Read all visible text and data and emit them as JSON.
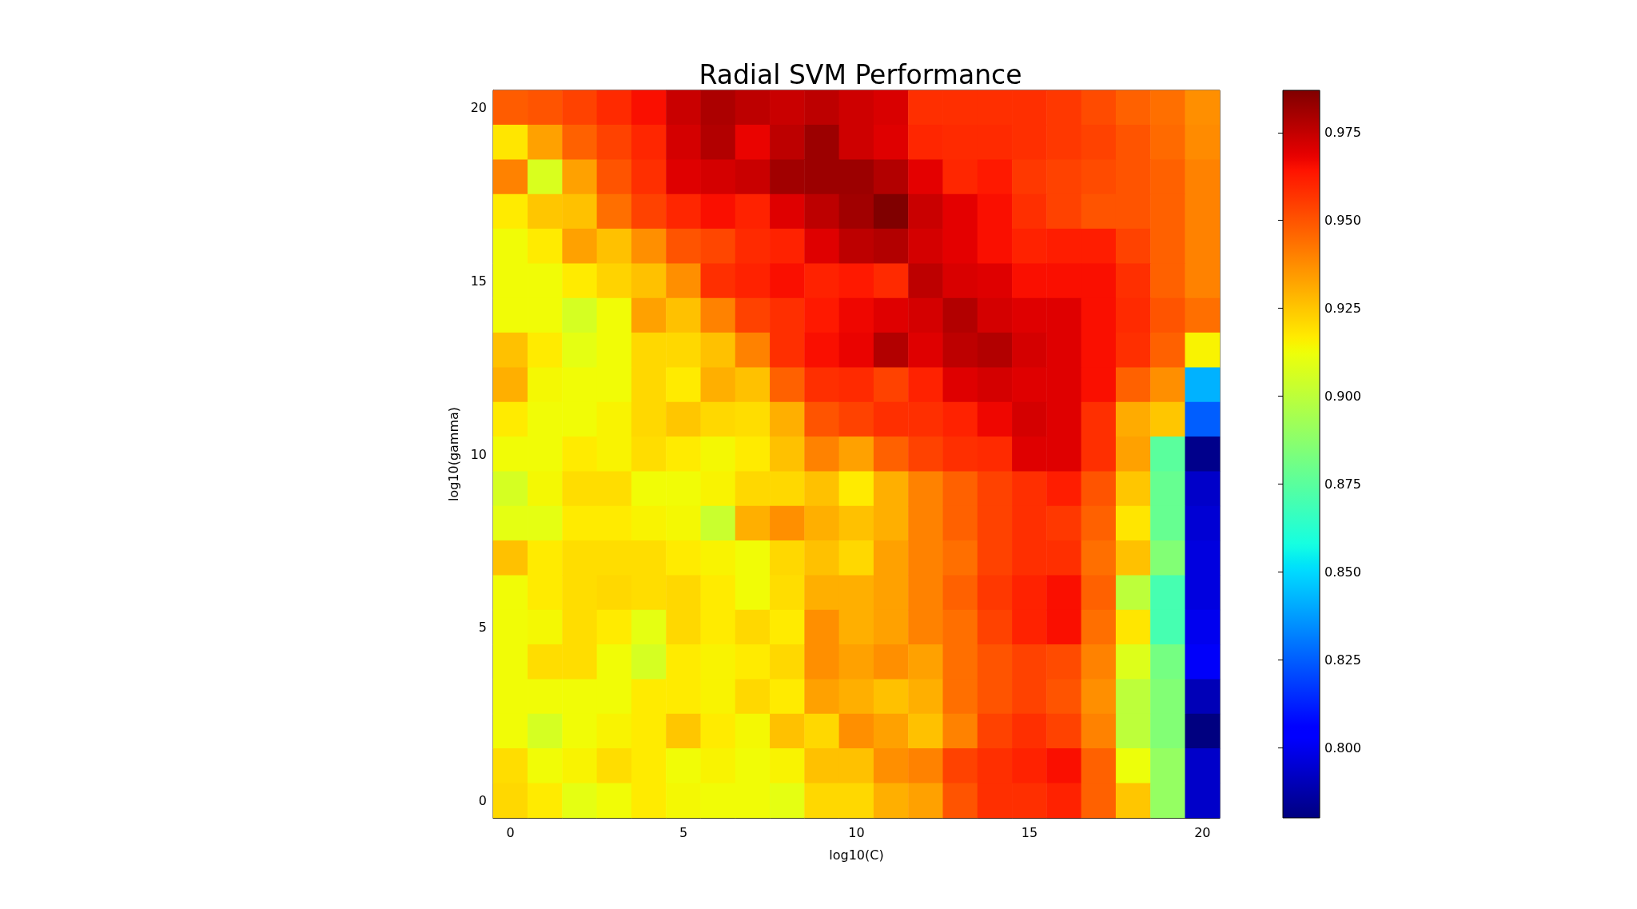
{
  "chart_data": {
    "type": "heatmap",
    "title": "Radial SVM Performance",
    "xlabel": "log10(C)",
    "ylabel": "log10(gamma)",
    "categories": [
      "0",
      null,
      null,
      null,
      null,
      "5",
      null,
      null,
      null,
      null,
      "10",
      null,
      null,
      null,
      null,
      "15",
      null,
      null,
      null,
      null,
      "20"
    ],
    "y_categories": [
      "20",
      null,
      null,
      null,
      null,
      "15",
      null,
      null,
      null,
      null,
      "10",
      null,
      null,
      null,
      null,
      "5",
      null,
      null,
      null,
      null,
      "0"
    ],
    "cells": [
      [
        0.948,
        0.95,
        0.954,
        0.959,
        0.965,
        0.974,
        0.979,
        0.976,
        0.974,
        0.976,
        0.973,
        0.971,
        0.958,
        0.958,
        0.958,
        0.958,
        0.956,
        0.952,
        0.947,
        0.944,
        0.937
      ],
      [
        0.918,
        0.933,
        0.947,
        0.954,
        0.96,
        0.972,
        0.978,
        0.968,
        0.976,
        0.982,
        0.973,
        0.97,
        0.96,
        0.959,
        0.959,
        0.958,
        0.956,
        0.954,
        0.95,
        0.945,
        0.938
      ],
      [
        0.94,
        0.907,
        0.933,
        0.95,
        0.958,
        0.97,
        0.972,
        0.974,
        0.981,
        0.982,
        0.982,
        0.978,
        0.969,
        0.96,
        0.963,
        0.956,
        0.954,
        0.952,
        0.95,
        0.947,
        0.94
      ],
      [
        0.917,
        0.925,
        0.926,
        0.944,
        0.954,
        0.96,
        0.965,
        0.961,
        0.97,
        0.976,
        0.981,
        0.987,
        0.974,
        0.969,
        0.965,
        0.958,
        0.954,
        0.95,
        0.95,
        0.947,
        0.94
      ],
      [
        0.913,
        0.917,
        0.933,
        0.926,
        0.937,
        0.95,
        0.953,
        0.959,
        0.961,
        0.97,
        0.976,
        0.978,
        0.972,
        0.969,
        0.965,
        0.961,
        0.962,
        0.962,
        0.954,
        0.947,
        0.94
      ],
      [
        0.913,
        0.913,
        0.917,
        0.922,
        0.926,
        0.937,
        0.958,
        0.961,
        0.965,
        0.961,
        0.963,
        0.959,
        0.976,
        0.971,
        0.97,
        0.965,
        0.965,
        0.965,
        0.958,
        0.947,
        0.94
      ],
      [
        0.913,
        0.913,
        0.906,
        0.913,
        0.933,
        0.926,
        0.94,
        0.954,
        0.958,
        0.963,
        0.967,
        0.97,
        0.972,
        0.978,
        0.972,
        0.97,
        0.97,
        0.965,
        0.959,
        0.95,
        0.944
      ],
      [
        0.926,
        0.917,
        0.91,
        0.913,
        0.921,
        0.921,
        0.926,
        0.94,
        0.958,
        0.965,
        0.968,
        0.978,
        0.97,
        0.976,
        0.978,
        0.972,
        0.97,
        0.965,
        0.958,
        0.947,
        0.915
      ],
      [
        0.93,
        0.914,
        0.913,
        0.913,
        0.921,
        0.917,
        0.93,
        0.926,
        0.947,
        0.958,
        0.959,
        0.954,
        0.961,
        0.97,
        0.972,
        0.97,
        0.97,
        0.965,
        0.947,
        0.937,
        0.842
      ],
      [
        0.917,
        0.913,
        0.913,
        0.915,
        0.921,
        0.925,
        0.921,
        0.92,
        0.93,
        0.95,
        0.954,
        0.958,
        0.958,
        0.961,
        0.967,
        0.972,
        0.97,
        0.958,
        0.931,
        0.925,
        0.825
      ],
      [
        0.913,
        0.913,
        0.917,
        0.915,
        0.92,
        0.917,
        0.914,
        0.917,
        0.926,
        0.94,
        0.933,
        0.947,
        0.954,
        0.958,
        0.959,
        0.97,
        0.97,
        0.958,
        0.933,
        0.875,
        0.782
      ],
      [
        0.906,
        0.914,
        0.92,
        0.92,
        0.913,
        0.913,
        0.915,
        0.921,
        0.921,
        0.926,
        0.917,
        0.93,
        0.94,
        0.947,
        0.954,
        0.958,
        0.962,
        0.95,
        0.925,
        0.878,
        0.793
      ],
      [
        0.91,
        0.91,
        0.917,
        0.917,
        0.915,
        0.914,
        0.903,
        0.93,
        0.937,
        0.93,
        0.926,
        0.93,
        0.94,
        0.947,
        0.954,
        0.958,
        0.956,
        0.947,
        0.918,
        0.878,
        0.795
      ],
      [
        0.926,
        0.917,
        0.92,
        0.92,
        0.92,
        0.917,
        0.915,
        0.913,
        0.921,
        0.926,
        0.921,
        0.933,
        0.94,
        0.944,
        0.954,
        0.958,
        0.958,
        0.944,
        0.926,
        0.885,
        0.797
      ],
      [
        0.913,
        0.917,
        0.92,
        0.921,
        0.92,
        0.921,
        0.917,
        0.913,
        0.92,
        0.93,
        0.93,
        0.933,
        0.94,
        0.947,
        0.956,
        0.961,
        0.965,
        0.947,
        0.9,
        0.87,
        0.797
      ],
      [
        0.913,
        0.914,
        0.92,
        0.917,
        0.91,
        0.921,
        0.917,
        0.921,
        0.917,
        0.937,
        0.93,
        0.933,
        0.94,
        0.944,
        0.954,
        0.961,
        0.965,
        0.944,
        0.918,
        0.87,
        0.8
      ],
      [
        0.913,
        0.92,
        0.92,
        0.913,
        0.906,
        0.917,
        0.915,
        0.917,
        0.921,
        0.937,
        0.933,
        0.937,
        0.933,
        0.944,
        0.95,
        0.954,
        0.952,
        0.94,
        0.908,
        0.882,
        0.802
      ],
      [
        0.913,
        0.913,
        0.913,
        0.913,
        0.917,
        0.917,
        0.915,
        0.921,
        0.917,
        0.933,
        0.93,
        0.926,
        0.93,
        0.944,
        0.95,
        0.954,
        0.95,
        0.937,
        0.9,
        0.885,
        0.79
      ],
      [
        0.913,
        0.906,
        0.913,
        0.915,
        0.917,
        0.925,
        0.917,
        0.914,
        0.926,
        0.921,
        0.937,
        0.933,
        0.926,
        0.94,
        0.954,
        0.958,
        0.954,
        0.94,
        0.9,
        0.885,
        0.78
      ],
      [
        0.92,
        0.913,
        0.915,
        0.92,
        0.917,
        0.913,
        0.915,
        0.913,
        0.915,
        0.926,
        0.926,
        0.937,
        0.94,
        0.954,
        0.958,
        0.961,
        0.965,
        0.947,
        0.912,
        0.89,
        0.793
      ],
      [
        0.921,
        0.917,
        0.91,
        0.913,
        0.917,
        0.914,
        0.913,
        0.913,
        0.91,
        0.921,
        0.921,
        0.93,
        0.933,
        0.95,
        0.958,
        0.958,
        0.961,
        0.947,
        0.925,
        0.89,
        0.793
      ]
    ],
    "clim": [
      0.78,
      0.987
    ],
    "cticks": [
      {
        "value": 0.8,
        "label": "0.800"
      },
      0.825,
      {
        "value": 0.85,
        "label": "0.850"
      },
      0.875,
      {
        "value": 0.9,
        "label": "0.900"
      },
      0.925,
      {
        "value": 0.95,
        "label": "0.950"
      },
      0.975
    ]
  }
}
